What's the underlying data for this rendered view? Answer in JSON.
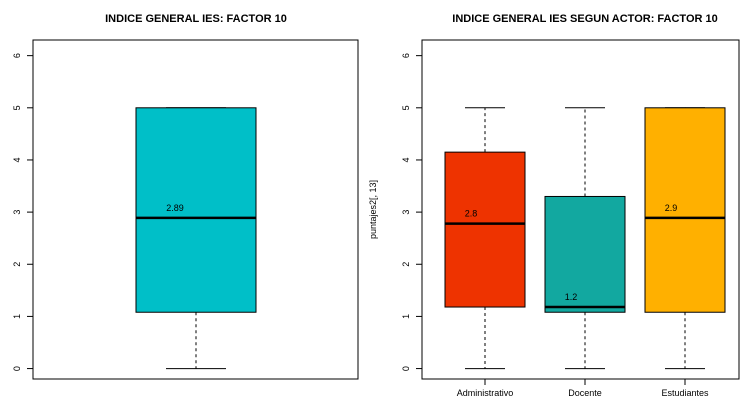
{
  "chart_data": [
    {
      "type": "box",
      "title": "INDICE GENERAL IES: FACTOR 10",
      "xlabel": "",
      "ylabel": "",
      "ylim": [
        -0.2,
        6.3
      ],
      "yticks": [
        "0",
        "1",
        "2",
        "3",
        "4",
        "5",
        "6"
      ],
      "categories": [
        ""
      ],
      "boxes": [
        {
          "min": 0,
          "q1": 1.08,
          "median": 2.89,
          "q3": 5.0,
          "max": 5.0,
          "median_label": "2.89",
          "color": "#00BFC8"
        }
      ]
    },
    {
      "type": "box",
      "title": "INDICE GENERAL IES SEGUN ACTOR: FACTOR 10",
      "xlabel": "",
      "ylabel": "puntajes2[, 13]",
      "ylim": [
        -0.2,
        6.3
      ],
      "yticks": [
        "0",
        "1",
        "2",
        "3",
        "4",
        "5",
        "6"
      ],
      "categories": [
        "Administrativo",
        "Docente",
        "Estudiantes"
      ],
      "boxes": [
        {
          "min": 0,
          "q1": 1.18,
          "median": 2.78,
          "q3": 4.15,
          "max": 5.0,
          "median_label": "2.8",
          "color": "#EE3300"
        },
        {
          "min": 0,
          "q1": 1.08,
          "median": 1.18,
          "q3": 3.3,
          "max": 5.0,
          "median_label": "1.2",
          "color": "#12A8A0"
        },
        {
          "min": 0,
          "q1": 1.08,
          "median": 2.89,
          "q3": 5.0,
          "max": 5.0,
          "median_label": "2.9",
          "color": "#FFB000"
        }
      ]
    }
  ]
}
